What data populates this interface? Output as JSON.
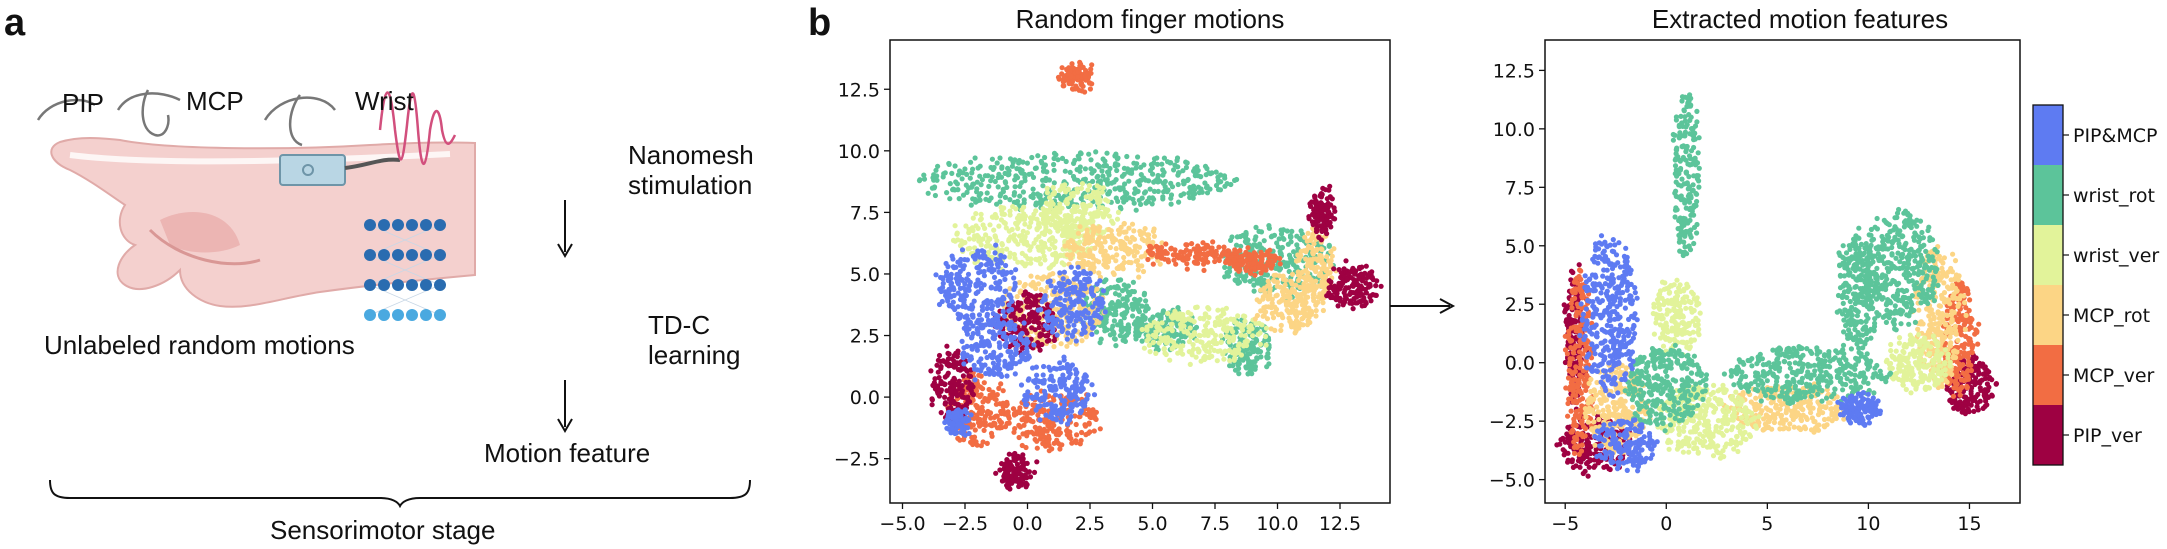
{
  "figure": {
    "panel_a_letter": "a",
    "panel_b_letter": "b"
  },
  "panel_a": {
    "joint_labels": [
      "PIP",
      "MCP",
      "Wrist"
    ],
    "stimulation_label_line1": "Nanomesh",
    "stimulation_label_line2": "stimulation",
    "learning_label_line1": "TD-C",
    "learning_label_line2": "learning",
    "output_label": "Motion feature",
    "input_label": "Unlabeled random motions",
    "stage_label": "Sensorimotor stage",
    "colors": {
      "skin": "#f2c7c5",
      "skin_dark": "#e6a5a3",
      "device": "#a9c9d8",
      "wave": "#d24f7d",
      "nn_dark": "#2a6cb0",
      "nn_light": "#4aa9e0"
    }
  },
  "chart_data": [
    {
      "type": "scatter",
      "title": "Random finger motions",
      "xlim": [
        -5.5,
        14.5
      ],
      "ylim": [
        -4.3,
        14.5
      ],
      "xticks": [
        -5.0,
        -2.5,
        0.0,
        2.5,
        5.0,
        7.5,
        10.0,
        12.5
      ],
      "xtick_labels": [
        "−5.0",
        "−2.5",
        "0.0",
        "2.5",
        "5.0",
        "7.5",
        "10.0",
        "12.5"
      ],
      "yticks": [
        -2.5,
        0.0,
        2.5,
        5.0,
        7.5,
        10.0,
        12.5
      ],
      "ytick_labels": [
        "−2.5",
        "0.0",
        "2.5",
        "5.0",
        "7.5",
        "10.0",
        "12.5"
      ],
      "grid": false,
      "clusters": [
        {
          "class": "wrist_rot",
          "cx": 2.0,
          "cy": 8.8,
          "rx": 6.5,
          "ry": 1.1
        },
        {
          "class": "wrist_rot",
          "cx": 5.5,
          "cy": 2.8,
          "rx": 1.2,
          "ry": 0.8
        },
        {
          "class": "wrist_rot",
          "cx": 8.8,
          "cy": 2.0,
          "rx": 0.9,
          "ry": 1.1
        },
        {
          "class": "wrist_rot",
          "cx": 10.0,
          "cy": 5.5,
          "rx": 2.2,
          "ry": 1.4
        },
        {
          "class": "wrist_rot",
          "cx": 3.5,
          "cy": 3.5,
          "rx": 1.3,
          "ry": 1.3
        },
        {
          "class": "wrist_ver",
          "cx": 0.0,
          "cy": 6.5,
          "rx": 3.0,
          "ry": 1.2
        },
        {
          "class": "wrist_ver",
          "cx": 7.0,
          "cy": 2.5,
          "rx": 2.5,
          "ry": 1.1
        },
        {
          "class": "wrist_ver",
          "cx": 2.0,
          "cy": 7.5,
          "rx": 1.5,
          "ry": 1.2
        },
        {
          "class": "MCP_rot",
          "cx": 10.5,
          "cy": 3.8,
          "rx": 1.3,
          "ry": 1.2
        },
        {
          "class": "MCP_rot",
          "cx": 11.5,
          "cy": 5.2,
          "rx": 0.7,
          "ry": 1.5
        },
        {
          "class": "MCP_rot",
          "cx": 1.0,
          "cy": 3.5,
          "rx": 2.0,
          "ry": 1.5
        },
        {
          "class": "MCP_rot",
          "cx": 3.5,
          "cy": 6.0,
          "rx": 2.0,
          "ry": 1.0
        },
        {
          "class": "MCP_ver",
          "cx": 2.0,
          "cy": 13.0,
          "rx": 0.65,
          "ry": 0.5
        },
        {
          "class": "MCP_ver",
          "cx": 6.5,
          "cy": 5.8,
          "rx": 2.0,
          "ry": 0.4
        },
        {
          "class": "MCP_ver",
          "cx": 1.0,
          "cy": -1.0,
          "rx": 1.8,
          "ry": 1.2
        },
        {
          "class": "MCP_ver",
          "cx": -2.0,
          "cy": -0.5,
          "rx": 1.2,
          "ry": 1.5
        },
        {
          "class": "MCP_ver",
          "cx": 9.0,
          "cy": 5.5,
          "rx": 1.0,
          "ry": 0.4
        },
        {
          "class": "PIP_ver",
          "cx": 13.0,
          "cy": 4.5,
          "rx": 1.0,
          "ry": 0.9
        },
        {
          "class": "PIP_ver",
          "cx": 11.8,
          "cy": 7.5,
          "rx": 0.4,
          "ry": 1.0
        },
        {
          "class": "PIP_ver",
          "cx": -3.0,
          "cy": 0.5,
          "rx": 0.8,
          "ry": 1.5
        },
        {
          "class": "PIP_ver",
          "cx": -0.5,
          "cy": -3.0,
          "rx": 0.6,
          "ry": 0.7
        },
        {
          "class": "PIP_ver",
          "cx": 0.0,
          "cy": 3.0,
          "rx": 1.2,
          "ry": 1.2
        },
        {
          "class": "PIP&MCP",
          "cx": -2.0,
          "cy": 4.5,
          "rx": 1.6,
          "ry": 1.6
        },
        {
          "class": "PIP&MCP",
          "cx": 1.2,
          "cy": 0.2,
          "rx": 1.3,
          "ry": 1.2
        },
        {
          "class": "PIP&MCP",
          "cx": -1.3,
          "cy": 2.0,
          "rx": 1.5,
          "ry": 1.2
        },
        {
          "class": "PIP&MCP",
          "cx": 1.8,
          "cy": 3.8,
          "rx": 1.3,
          "ry": 1.4
        },
        {
          "class": "PIP&MCP",
          "cx": -2.8,
          "cy": -1.0,
          "rx": 0.4,
          "ry": 0.5
        }
      ]
    },
    {
      "type": "scatter",
      "title": "Extracted motion features",
      "xlim": [
        -6.0,
        17.5
      ],
      "ylim": [
        -6.0,
        13.8
      ],
      "xticks": [
        -5,
        0,
        5,
        10,
        15
      ],
      "xtick_labels": [
        "−5",
        "0",
        "5",
        "10",
        "15"
      ],
      "yticks": [
        -5.0,
        -2.5,
        0.0,
        2.5,
        5.0,
        7.5,
        10.0,
        12.5
      ],
      "ytick_labels": [
        "−5.0",
        "−2.5",
        "0.0",
        "2.5",
        "5.0",
        "7.5",
        "10.0",
        "12.5"
      ],
      "grid": false,
      "clusters": [
        {
          "class": "PIP_ver",
          "cx": -3.5,
          "cy": -3.5,
          "rx": 1.8,
          "ry": 1.2
        },
        {
          "class": "PIP_ver",
          "cx": 15.0,
          "cy": -1.0,
          "rx": 1.2,
          "ry": 1.2
        },
        {
          "class": "PIP_ver",
          "cx": -4.5,
          "cy": 1.0,
          "rx": 0.5,
          "ry": 3.0
        },
        {
          "class": "MCP_ver",
          "cx": -4.3,
          "cy": 0.0,
          "rx": 0.6,
          "ry": 4.0
        },
        {
          "class": "MCP_ver",
          "cx": 14.5,
          "cy": 1.0,
          "rx": 0.8,
          "ry": 2.5
        },
        {
          "class": "MCP_rot",
          "cx": -2.5,
          "cy": -2.0,
          "rx": 1.5,
          "ry": 2.0
        },
        {
          "class": "MCP_rot",
          "cx": 13.5,
          "cy": 2.0,
          "rx": 1.2,
          "ry": 3.0
        },
        {
          "class": "MCP_rot",
          "cx": 6.0,
          "cy": -2.0,
          "rx": 3.0,
          "ry": 1.0
        },
        {
          "class": "wrist_ver",
          "cx": 2.0,
          "cy": -2.5,
          "rx": 2.5,
          "ry": 1.5
        },
        {
          "class": "wrist_ver",
          "cx": 12.5,
          "cy": 0.0,
          "rx": 1.5,
          "ry": 1.2
        },
        {
          "class": "wrist_ver",
          "cx": 0.5,
          "cy": 2.0,
          "rx": 1.2,
          "ry": 1.5
        },
        {
          "class": "wrist_rot",
          "cx": 1.0,
          "cy": 8.0,
          "rx": 0.6,
          "ry": 3.5
        },
        {
          "class": "wrist_rot",
          "cx": 11.5,
          "cy": 4.0,
          "rx": 2.0,
          "ry": 2.5
        },
        {
          "class": "wrist_rot",
          "cx": 7.0,
          "cy": -0.5,
          "rx": 4.0,
          "ry": 1.2
        },
        {
          "class": "wrist_rot",
          "cx": 0.0,
          "cy": -1.0,
          "rx": 2.0,
          "ry": 1.8
        },
        {
          "class": "wrist_rot",
          "cx": 9.5,
          "cy": 3.0,
          "rx": 1.0,
          "ry": 2.5
        },
        {
          "class": "PIP&MCP",
          "cx": -2.8,
          "cy": 2.0,
          "rx": 1.3,
          "ry": 3.5
        },
        {
          "class": "PIP&MCP",
          "cx": -2.0,
          "cy": -3.5,
          "rx": 1.5,
          "ry": 1.0
        },
        {
          "class": "PIP&MCP",
          "cx": 9.5,
          "cy": -2.0,
          "rx": 1.0,
          "ry": 0.6
        }
      ]
    }
  ],
  "legend": {
    "entries": [
      {
        "name": "PIP&MCP",
        "color": "#5e7bf2"
      },
      {
        "name": "wrist_rot",
        "color": "#5cc49a"
      },
      {
        "name": "wrist_ver",
        "color": "#e2f39a"
      },
      {
        "name": "MCP_rot",
        "color": "#fcd585"
      },
      {
        "name": "MCP_ver",
        "color": "#f26d43"
      },
      {
        "name": "PIP_ver",
        "color": "#9e0142"
      }
    ],
    "placement": "right-colorbar"
  }
}
